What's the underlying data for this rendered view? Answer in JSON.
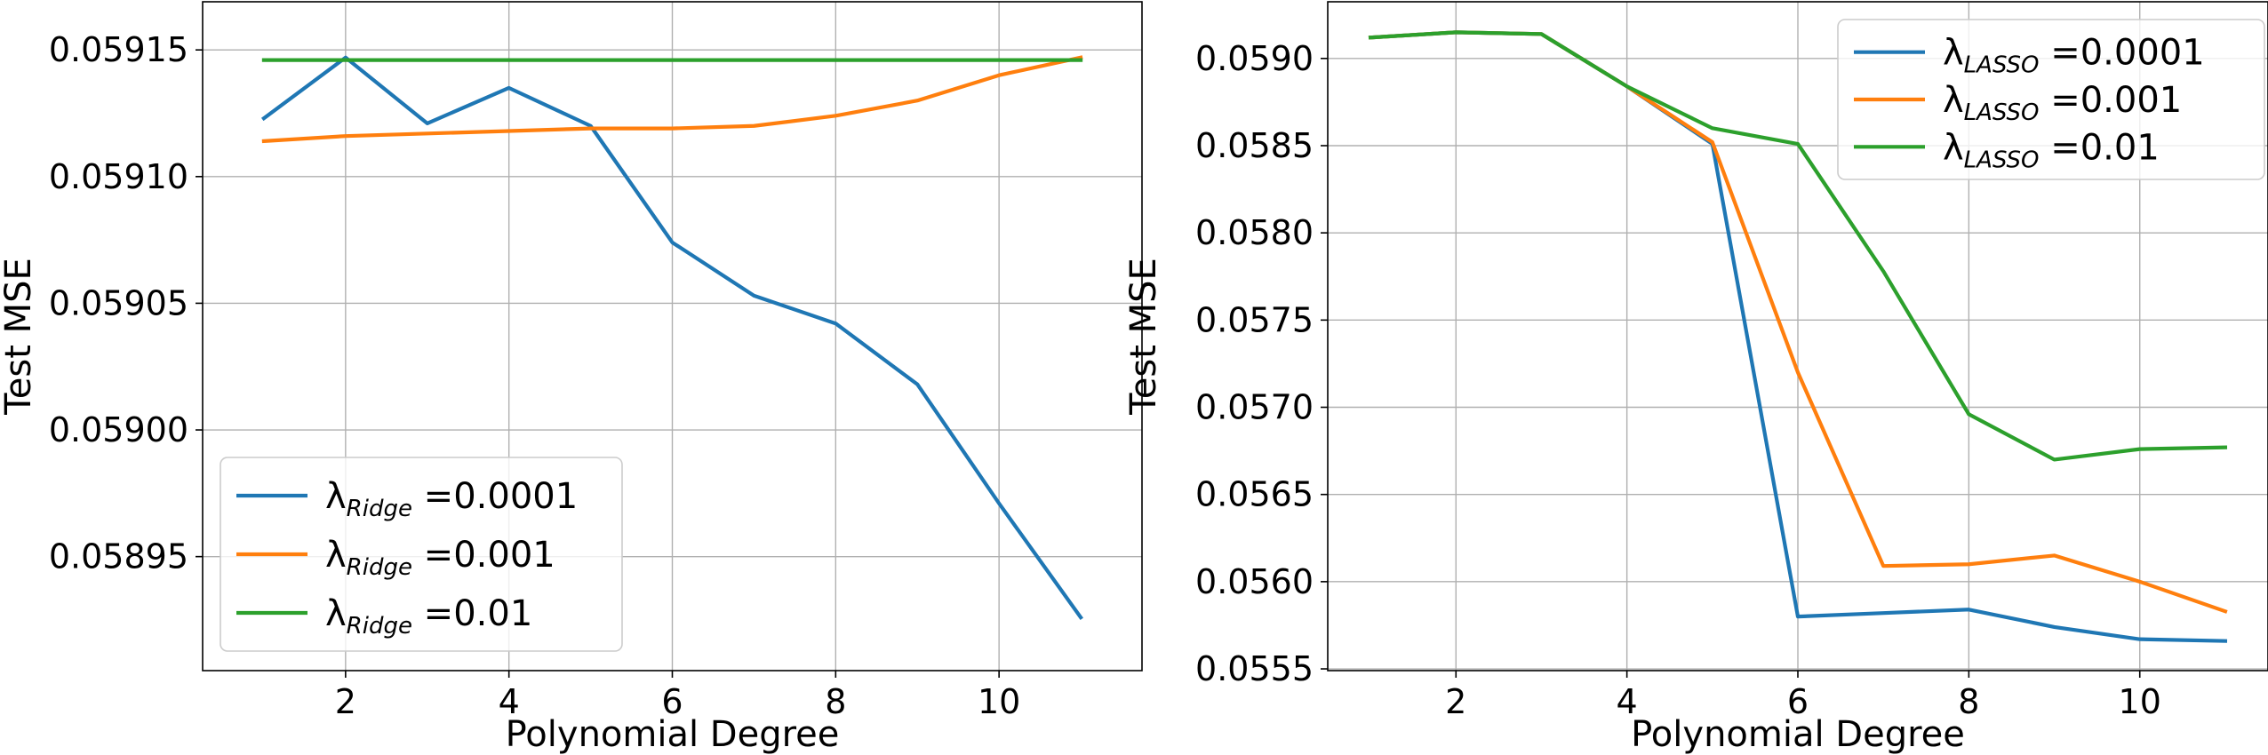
{
  "chart_data": [
    {
      "type": "line",
      "title": "",
      "xlabel": "Polynomial Degree",
      "ylabel": "Test MSE",
      "xlim": [
        0.25,
        11.75
      ],
      "ylim": [
        0.058905,
        0.059169
      ],
      "xticks": [
        2,
        4,
        6,
        8,
        10
      ],
      "xtick_labels": [
        "2",
        "4",
        "6",
        "8",
        "10"
      ],
      "yticks": [
        0.05895,
        0.059,
        0.05905,
        0.0591,
        0.05915
      ],
      "ytick_labels": [
        "0.05895",
        "0.05900",
        "0.05905",
        "0.05910",
        "0.05915"
      ],
      "grid": true,
      "legend_position": "lower-left",
      "x": [
        1,
        2,
        3,
        4,
        5,
        6,
        7,
        8,
        9,
        10,
        11
      ],
      "series": [
        {
          "name": "λ",
          "subscript": "Ridge",
          "value_text": " =0.0001",
          "color": "#1f77b4",
          "values": [
            0.059123,
            0.059147,
            0.059121,
            0.059135,
            0.05912,
            0.059074,
            0.059053,
            0.059042,
            0.059018,
            0.058971,
            0.058926
          ]
        },
        {
          "name": "λ",
          "subscript": "Ridge",
          "value_text": " =0.001",
          "color": "#ff7f0e",
          "values": [
            0.059114,
            0.059116,
            0.059117,
            0.059118,
            0.059119,
            0.059119,
            0.05912,
            0.059124,
            0.05913,
            0.05914,
            0.059147
          ]
        },
        {
          "name": "λ",
          "subscript": "Ridge",
          "value_text": " =0.01",
          "color": "#2ca02c",
          "values": [
            0.059146,
            0.059146,
            0.059146,
            0.059146,
            0.059146,
            0.059146,
            0.059146,
            0.059146,
            0.059146,
            0.059146,
            0.059146
          ]
        }
      ]
    },
    {
      "type": "line",
      "title": "",
      "xlabel": "Polynomial Degree",
      "ylabel": "Test MSE",
      "xlim": [
        0.5,
        11.5
      ],
      "ylim": [
        0.05549,
        0.059325
      ],
      "xticks": [
        2,
        4,
        6,
        8,
        10
      ],
      "xtick_labels": [
        "2",
        "4",
        "6",
        "8",
        "10"
      ],
      "yticks": [
        0.0555,
        0.056,
        0.0565,
        0.057,
        0.0575,
        0.058,
        0.0585,
        0.059
      ],
      "ytick_labels": [
        "0.0555",
        "0.0560",
        "0.0565",
        "0.0570",
        "0.0575",
        "0.0580",
        "0.0585",
        "0.0590"
      ],
      "grid": true,
      "legend_position": "upper-right",
      "x": [
        1,
        2,
        3,
        4,
        5,
        6,
        7,
        8,
        9,
        10,
        11
      ],
      "series": [
        {
          "name": "λ",
          "subscript": "LASSO",
          "value_text": " =0.0001",
          "color": "#1f77b4",
          "values": [
            0.05912,
            0.05915,
            0.05914,
            0.05884,
            0.05851,
            0.0558,
            0.05582,
            0.05584,
            0.05574,
            0.05567,
            0.05566
          ]
        },
        {
          "name": "λ",
          "subscript": "LASSO",
          "value_text": " =0.001",
          "color": "#ff7f0e",
          "values": [
            0.05912,
            0.05915,
            0.05914,
            0.05884,
            0.05852,
            0.0572,
            0.05609,
            0.0561,
            0.05615,
            0.056,
            0.05583
          ]
        },
        {
          "name": "λ",
          "subscript": "LASSO",
          "value_text": " =0.01",
          "color": "#2ca02c",
          "values": [
            0.05912,
            0.05915,
            0.05914,
            0.05884,
            0.0586,
            0.05851,
            0.05778,
            0.05696,
            0.0567,
            0.05676,
            0.05677
          ]
        }
      ]
    }
  ]
}
